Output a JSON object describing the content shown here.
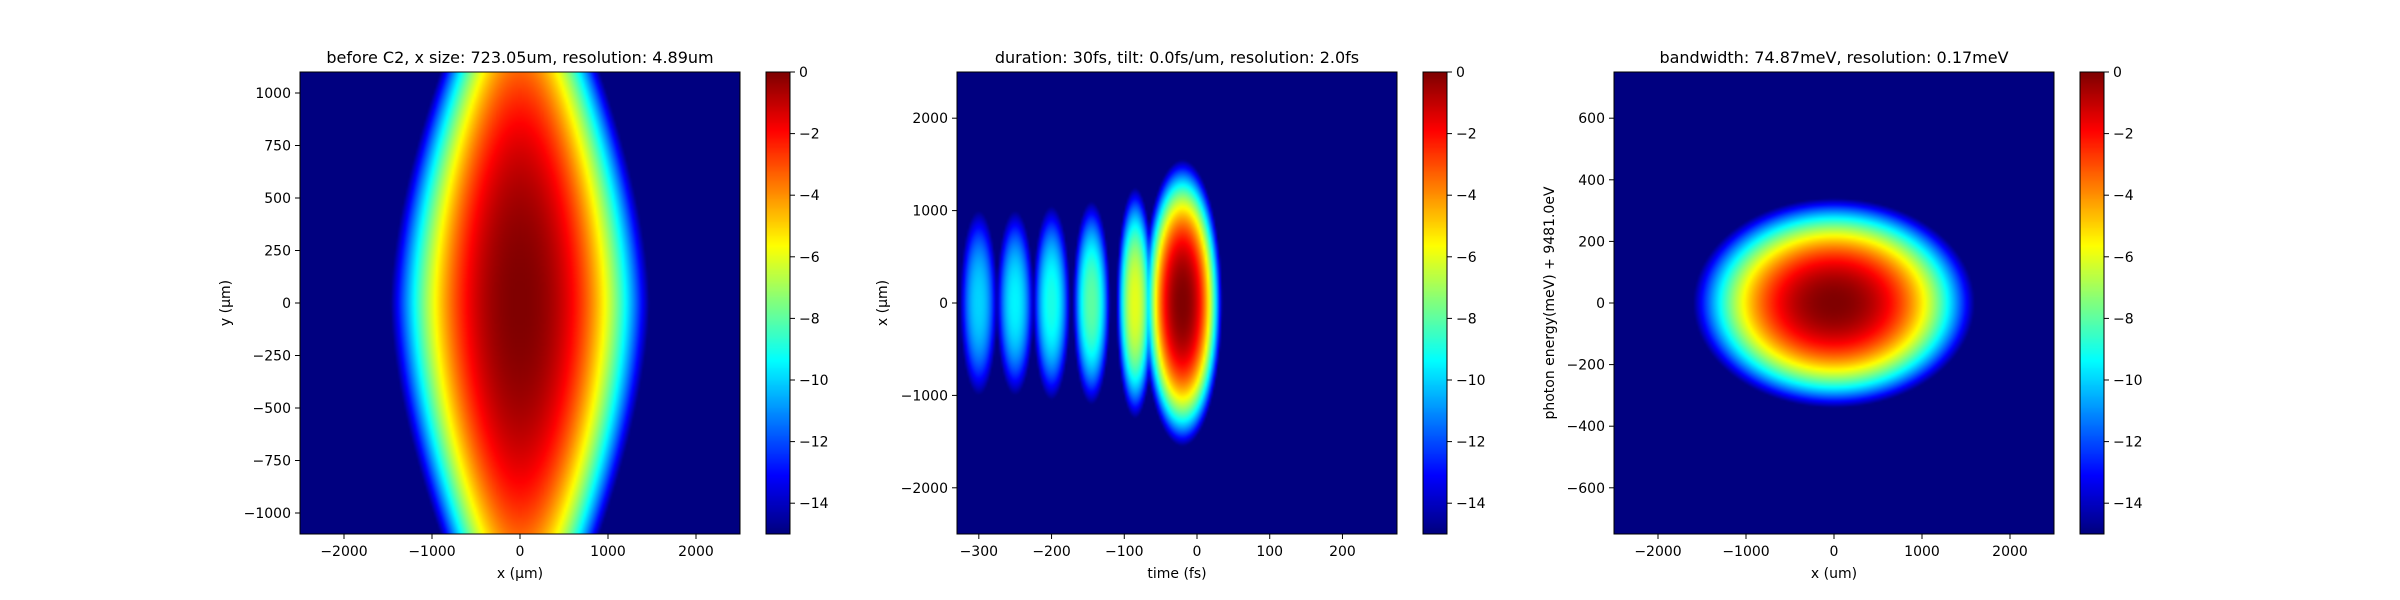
{
  "chart_data": [
    {
      "type": "heatmap",
      "title": "before C2, x size: 723.05um, resolution: 4.89um",
      "xlabel": "x (μm)",
      "ylabel": "y (μm)",
      "xlim": [
        -2500,
        2500
      ],
      "ylim": [
        -1100,
        1100
      ],
      "xticks": [
        -2000,
        -1000,
        0,
        1000,
        2000
      ],
      "yticks": [
        -1000,
        -750,
        -500,
        -250,
        0,
        250,
        500,
        750,
        1000
      ],
      "colorbar": {
        "range": [
          -15,
          0
        ],
        "ticks": [
          0,
          -2,
          -4,
          -6,
          -8,
          -10,
          -12,
          -14
        ],
        "colormap": "jet"
      },
      "field": {
        "kind": "gaussian-beam",
        "peak_db": 0,
        "x_edge_at_center": 1450,
        "x_edge_at_top": 1050,
        "core_y_extent": 700
      }
    },
    {
      "type": "heatmap",
      "title": "duration: 30fs, tilt: 0.0fs/um, resolution: 2.0fs",
      "xlabel": "time (fs)",
      "ylabel": "x (μm)",
      "xlim": [
        -330,
        275
      ],
      "ylim": [
        -2500,
        2500
      ],
      "xticks": [
        -300,
        -200,
        -100,
        0,
        100,
        200
      ],
      "yticks": [
        -2000,
        -1000,
        0,
        1000,
        2000
      ],
      "colorbar": {
        "range": [
          -15,
          0
        ],
        "ticks": [
          0,
          -2,
          -4,
          -6,
          -8,
          -10,
          -12,
          -14
        ],
        "colormap": "jet"
      },
      "field": {
        "kind": "pulse-train",
        "main_pulse_center_fs": -20,
        "lobe_centers_fs": [
          -20,
          -85,
          -145,
          -200,
          -250,
          -300
        ],
        "lobe_peaks_db": [
          0,
          -6,
          -8,
          -9,
          -9.5,
          -10
        ],
        "x_half_width_um": [
          1550,
          1250,
          1100,
          1050,
          1000,
          1000
        ]
      }
    },
    {
      "type": "heatmap",
      "title": "bandwidth: 74.87meV, resolution: 0.17meV",
      "xlabel": "x (um)",
      "ylabel": "photon energy(meV) + 9481.0eV",
      "xlim": [
        -2500,
        2500
      ],
      "ylim": [
        -750,
        750
      ],
      "xticks": [
        -2000,
        -1000,
        0,
        1000,
        2000
      ],
      "yticks": [
        -600,
        -400,
        -200,
        0,
        200,
        400,
        600
      ],
      "colorbar": {
        "range": [
          -15,
          0
        ],
        "ticks": [
          0,
          -2,
          -4,
          -6,
          -8,
          -10,
          -12,
          -14
        ],
        "colormap": "jet"
      },
      "field": {
        "kind": "elliptical-gaussian",
        "peak_db": 0,
        "x_half_width": 1600,
        "y_half_width": 340
      }
    }
  ]
}
